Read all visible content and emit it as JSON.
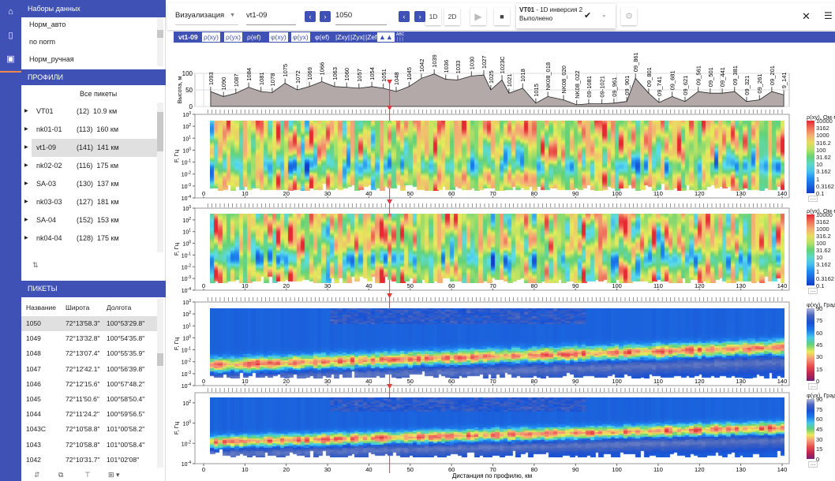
{
  "nav": {
    "icons": [
      "home-icon",
      "map-icon",
      "profile-icon"
    ]
  },
  "datasets": {
    "title": "Наборы данных",
    "items": [
      "Норм_авто",
      "no norm",
      "Норм_ручная"
    ]
  },
  "profiles": {
    "title": "ПРОФИЛИ",
    "all_label": "Все пикеты",
    "selected": "vt1-09",
    "items": [
      {
        "name": "VT01",
        "count": "(12)",
        "length": "10.9 км"
      },
      {
        "name": "nk01-01",
        "count": "(113)",
        "length": "160 км"
      },
      {
        "name": "vt1-09",
        "count": "(141)",
        "length": "141 км"
      },
      {
        "name": "nk02-02",
        "count": "(116)",
        "length": "175 км"
      },
      {
        "name": "SA-03",
        "count": "(130)",
        "length": "137 км"
      },
      {
        "name": "nk03-03",
        "count": "(127)",
        "length": "181 км"
      },
      {
        "name": "SA-04",
        "count": "(152)",
        "length": "153 км"
      },
      {
        "name": "nk04-04",
        "count": "(128)",
        "length": "175 км"
      }
    ]
  },
  "pickets": {
    "title": "ПИКЕТЫ",
    "columns": [
      "Название",
      "Широта",
      "Долгота"
    ],
    "rows": [
      [
        "1050",
        "72°13'58.3\"",
        "100°53'29.8\""
      ],
      [
        "1049",
        "72°13'32.8\"",
        "100°54'35.8\""
      ],
      [
        "1048",
        "72°13'07.4\"",
        "100°55'35.9\""
      ],
      [
        "1047",
        "72°12'42.1\"",
        "100°56'39.8\""
      ],
      [
        "1046",
        "72°12'15.6\"",
        "100°57'48.2\""
      ],
      [
        "1045",
        "72°11'50.6\"",
        "100°58'50.4\""
      ],
      [
        "1044",
        "72°11'24.2\"",
        "100°59'56.5\""
      ],
      [
        "1043C",
        "72°10'58.8\"",
        "101°00'58.2\""
      ],
      [
        "1043",
        "72°10'58.8\"",
        "101°00'58.4\""
      ],
      [
        "1042",
        "72°10'31.7\"",
        "101°02'08\""
      ]
    ]
  },
  "toolbar": {
    "mode": "Визуализация",
    "profile": "vt1-09",
    "picket": "1050",
    "btn_1d": "1D",
    "btn_2d": "2D",
    "status_title": "VT01",
    "status_task": " - 1D инверсия 2",
    "status_state": "Выполнено"
  },
  "tabs": {
    "profile": "vt1-09",
    "items": [
      {
        "label": "ρ(xy)",
        "on": true
      },
      {
        "label": "ρ(yx)",
        "on": true
      },
      {
        "label": "ρ(ef)",
        "on": false
      },
      {
        "label": "φ(xy)",
        "on": true
      },
      {
        "label": "φ(yx)",
        "on": true
      },
      {
        "label": "φ(ef)",
        "on": false
      },
      {
        "label": "|Zxy|",
        "on": false
      },
      {
        "label": "|Zyx|",
        "on": false
      },
      {
        "label": "|Zef|",
        "on": false
      }
    ],
    "abc": "ABC"
  },
  "colors": {
    "accent": "#3f51b5",
    "marker": "#e53935"
  },
  "chart_data": [
    {
      "type": "area",
      "title": "elevation",
      "ylabel": "Высота, м",
      "ylim": [
        0,
        100
      ],
      "yticks": [
        0,
        50,
        100
      ],
      "selected_km": 45,
      "stations": [
        [
          "1093",
          1.7,
          45
        ],
        [
          "1090",
          4.8,
          30
        ],
        [
          "1087",
          7.8,
          40
        ],
        [
          "1084",
          10.9,
          58
        ],
        [
          "1081",
          13.9,
          45
        ],
        [
          "1078",
          16.6,
          42
        ],
        [
          "1075",
          19.7,
          70
        ],
        [
          "1072",
          22.7,
          50
        ],
        [
          "1069",
          25.6,
          60
        ],
        [
          "1066",
          28.6,
          75
        ],
        [
          "1063",
          31.7,
          60
        ],
        [
          "1060",
          34.6,
          58
        ],
        [
          "1057",
          37.6,
          55
        ],
        [
          "1054",
          40.7,
          60
        ],
        [
          "1051",
          43.5,
          55
        ],
        [
          "1048",
          46.6,
          45
        ],
        [
          "1045",
          49.7,
          60
        ],
        [
          "1042",
          52.7,
          85
        ],
        [
          "1039",
          55.8,
          98
        ],
        [
          "1036",
          58.6,
          82
        ],
        [
          "1033",
          61.5,
          80
        ],
        [
          "1030",
          64.8,
          92
        ],
        [
          "1027",
          67.8,
          95
        ],
        [
          "1025",
          69.5,
          50
        ],
        [
          "1023C",
          72.2,
          80
        ],
        [
          "1021",
          73.9,
          40
        ],
        [
          "1018",
          77.2,
          55
        ],
        [
          "1015",
          80.4,
          10
        ],
        [
          "NK08_018",
          83.3,
          30
        ],
        [
          "NK08_020",
          87.1,
          20
        ],
        [
          "NK08_022",
          90.3,
          5
        ],
        [
          "09-1081",
          93.2,
          8
        ],
        [
          "09-1021",
          96.4,
          8
        ],
        [
          "09_961",
          99.3,
          10
        ],
        [
          "09_901",
          102.4,
          15
        ],
        [
          "09_861",
          104.5,
          85
        ],
        [
          "09_801",
          107.7,
          40
        ],
        [
          "09_741",
          110.2,
          12
        ],
        [
          "09_681",
          113.4,
          30
        ],
        [
          "09_621",
          116.5,
          15
        ],
        [
          "09_561",
          119.7,
          45
        ],
        [
          "09_501",
          122.6,
          40
        ],
        [
          "09_441",
          125.5,
          40
        ],
        [
          "09_381",
          128.5,
          45
        ],
        [
          "09_321",
          131.4,
          15
        ],
        [
          "09_261",
          134.5,
          20
        ],
        [
          "09_201",
          137.5,
          45
        ],
        [
          "9_141",
          140.4,
          35
        ]
      ]
    },
    {
      "type": "heatmap",
      "title": "ρ(xy), Ом·м",
      "ylabel": "F, Гц",
      "xlim": [
        0,
        140
      ],
      "xticks": [
        0,
        10,
        20,
        30,
        40,
        50,
        60,
        70,
        80,
        90,
        100,
        110,
        120,
        130,
        140
      ],
      "yticks": [
        "3",
        "2",
        "1",
        "0",
        "-1",
        "-2",
        "-3",
        "-4"
      ],
      "colorbar": [
        "10000",
        "3162",
        "1000",
        "316.2",
        "100",
        "31.62",
        "10",
        "3.162",
        "1",
        "0.3162",
        "0.1"
      ],
      "kind": "rho",
      "seed": 7
    },
    {
      "type": "heatmap",
      "title": "ρ(yx), Ом·м",
      "ylabel": "F, Гц",
      "xlim": [
        0,
        140
      ],
      "xticks": [
        0,
        10,
        20,
        30,
        40,
        50,
        60,
        70,
        80,
        90,
        100,
        110,
        120,
        130,
        140
      ],
      "yticks": [
        "3",
        "2",
        "1",
        "0",
        "-1",
        "-2",
        "-3",
        "-4"
      ],
      "colorbar": [
        "10000",
        "3162",
        "1000",
        "316.2",
        "100",
        "31.62",
        "10",
        "3.162",
        "1",
        "0.3162",
        "0.1"
      ],
      "kind": "rho",
      "seed": 19
    },
    {
      "type": "heatmap",
      "title": "φ(xy), Град",
      "ylabel": "F, Гц",
      "xlim": [
        0,
        140
      ],
      "xticks": [
        0,
        10,
        20,
        30,
        40,
        50,
        60,
        70,
        80,
        90,
        100,
        110,
        120,
        130,
        140
      ],
      "yticks": [
        "3",
        "2",
        "1",
        "0",
        "-1",
        "-2",
        "-3",
        "-4"
      ],
      "colorbar": [
        "90",
        "75",
        "60",
        "45",
        "30",
        "15",
        "0"
      ],
      "kind": "phi",
      "seed": 3
    },
    {
      "type": "heatmap",
      "title": "φ(yx), Град",
      "ylabel": "F, Гц",
      "xlabel": "Дистанция по профилю, км",
      "xlim": [
        0,
        140
      ],
      "xticks": [
        0,
        10,
        20,
        30,
        40,
        50,
        60,
        70,
        80,
        90,
        100,
        110,
        120,
        130,
        140
      ],
      "yticks": [
        "2",
        "0",
        "-2",
        "-4"
      ],
      "colorbar": [
        "90",
        "75",
        "60",
        "45",
        "30",
        "15",
        "0"
      ],
      "kind": "phi",
      "seed": 11
    }
  ]
}
